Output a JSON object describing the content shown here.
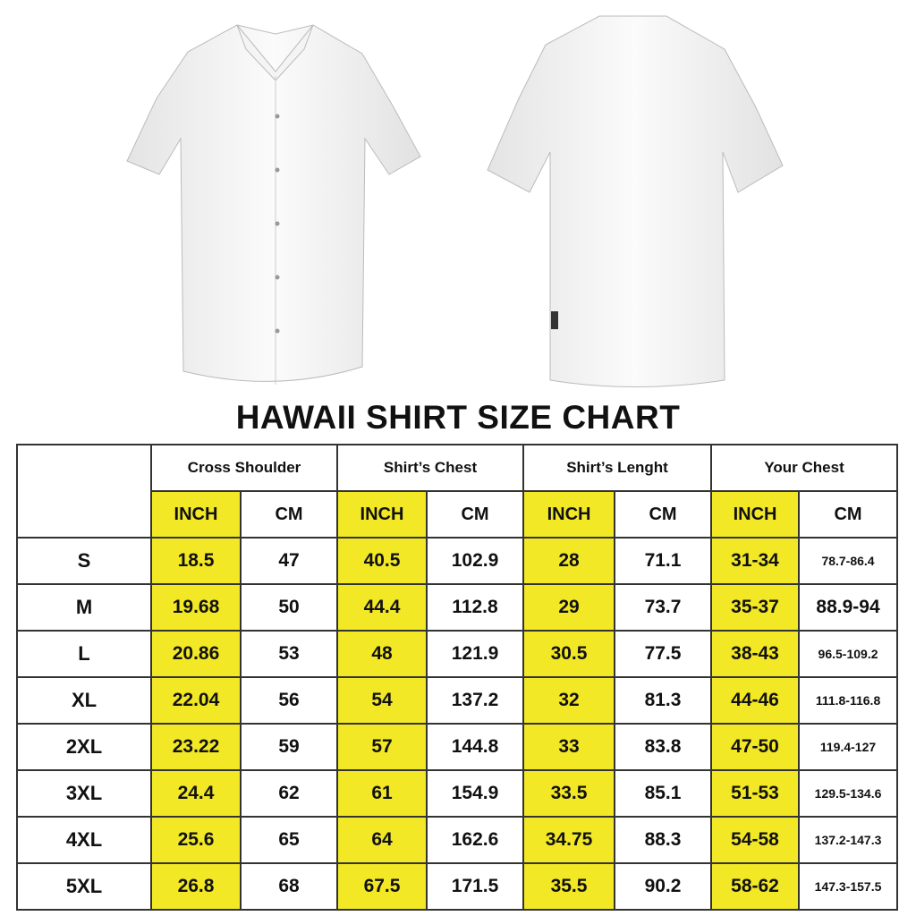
{
  "title": "HAWAII SHIRT SIZE CHART",
  "colors": {
    "highlight": "#f2e826",
    "border": "#333333"
  },
  "images": [
    "shirt-front",
    "shirt-back"
  ],
  "groups": [
    "Cross Shoulder",
    "Shirt’s Chest",
    "Shirt’s Lenght",
    "Your Chest"
  ],
  "units": {
    "inch": "INCH",
    "cm": "CM"
  },
  "rows": [
    {
      "size": "S",
      "cs_in": "18.5",
      "cs_cm": "47",
      "ch_in": "40.5",
      "ch_cm": "102.9",
      "ln_in": "28",
      "ln_cm": "71.1",
      "yc_in": "31-34",
      "yc_cm": "78.7-86.4"
    },
    {
      "size": "M",
      "cs_in": "19.68",
      "cs_cm": "50",
      "ch_in": "44.4",
      "ch_cm": "112.8",
      "ln_in": "29",
      "ln_cm": "73.7",
      "yc_in": "35-37",
      "yc_cm": "88.9-94"
    },
    {
      "size": "L",
      "cs_in": "20.86",
      "cs_cm": "53",
      "ch_in": "48",
      "ch_cm": "121.9",
      "ln_in": "30.5",
      "ln_cm": "77.5",
      "yc_in": "38-43",
      "yc_cm": "96.5-109.2"
    },
    {
      "size": "XL",
      "cs_in": "22.04",
      "cs_cm": "56",
      "ch_in": "54",
      "ch_cm": "137.2",
      "ln_in": "32",
      "ln_cm": "81.3",
      "yc_in": "44-46",
      "yc_cm": "111.8-116.8"
    },
    {
      "size": "2XL",
      "cs_in": "23.22",
      "cs_cm": "59",
      "ch_in": "57",
      "ch_cm": "144.8",
      "ln_in": "33",
      "ln_cm": "83.8",
      "yc_in": "47-50",
      "yc_cm": "119.4-127"
    },
    {
      "size": "3XL",
      "cs_in": "24.4",
      "cs_cm": "62",
      "ch_in": "61",
      "ch_cm": "154.9",
      "ln_in": "33.5",
      "ln_cm": "85.1",
      "yc_in": "51-53",
      "yc_cm": "129.5-134.6"
    },
    {
      "size": "4XL",
      "cs_in": "25.6",
      "cs_cm": "65",
      "ch_in": "64",
      "ch_cm": "162.6",
      "ln_in": "34.75",
      "ln_cm": "88.3",
      "yc_in": "54-58",
      "yc_cm": "137.2-147.3"
    },
    {
      "size": "5XL",
      "cs_in": "26.8",
      "cs_cm": "68",
      "ch_in": "67.5",
      "ch_cm": "171.5",
      "ln_in": "35.5",
      "ln_cm": "90.2",
      "yc_in": "58-62",
      "yc_cm": "147.3-157.5"
    }
  ]
}
